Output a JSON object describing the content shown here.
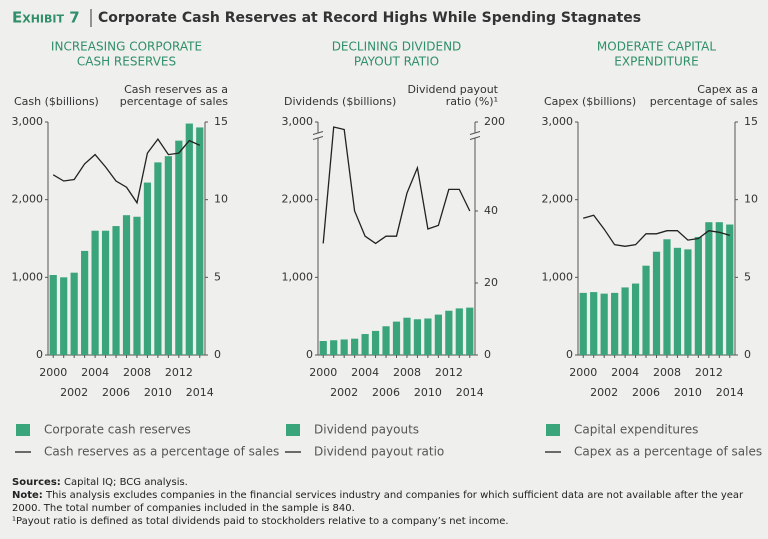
{
  "header": {
    "exhibit": "Exhibit 7",
    "title": "Corporate Cash Reserves at Record Highs While Spending Stagnates"
  },
  "chart_data": [
    {
      "type": "bar",
      "title": [
        "INCREASING CORPORATE",
        "CASH RESERVES"
      ],
      "y_label": "Cash ($billions)",
      "y2_label": [
        "Cash reserves as a",
        "percentage of sales"
      ],
      "categories": [
        "2000",
        null,
        "2002",
        null,
        "2004",
        null,
        "2006",
        null,
        "2008",
        null,
        "2010",
        null,
        "2012",
        null,
        "2014"
      ],
      "ylim": [
        0,
        3000
      ],
      "yticks": [
        0,
        {
          "value": 1000,
          "label": "1,000"
        },
        {
          "value": 2000,
          "label": "2,000"
        },
        {
          "value": 3000,
          "label": "3,000"
        }
      ],
      "y2lim": [
        0,
        15
      ],
      "y2ticks": [
        0,
        5,
        10,
        15
      ],
      "series": [
        {
          "name": "Corporate cash reserves",
          "type": "bar",
          "color": "#3aa57b",
          "axis": "y",
          "values": [
            1030,
            1000,
            1060,
            1340,
            1600,
            1600,
            1660,
            1800,
            1780,
            2220,
            2480,
            2560,
            2760,
            2980,
            2930
          ]
        },
        {
          "name": "Cash reserves as a percentage of sales",
          "type": "line",
          "color": "#222222",
          "axis": "y2",
          "values": [
            11.6,
            11.2,
            11.3,
            12.3,
            12.9,
            12.1,
            11.2,
            10.8,
            9.8,
            13.0,
            13.9,
            12.9,
            13.0,
            13.8,
            13.5
          ]
        }
      ]
    },
    {
      "type": "bar",
      "title": [
        "DECLINING DIVIDEND",
        "PAYOUT RATIO"
      ],
      "y_label": "Dividends ($billions)",
      "y2_label": [
        "Dividend payout",
        "ratio (%)¹"
      ],
      "categories": [
        "2000",
        null,
        "2002",
        null,
        "2004",
        null,
        "2006",
        null,
        "2008",
        null,
        "2010",
        null,
        "2012",
        null,
        "2014"
      ],
      "ylim": [
        0,
        3000
      ],
      "yticks": [
        0,
        {
          "value": 1000,
          "label": "1,000"
        },
        {
          "value": 2000,
          "label": "2,000"
        },
        {
          "value": 3000,
          "label": "3,000"
        }
      ],
      "y2lim": [
        0,
        200
      ],
      "y2ticks": [
        0,
        20,
        40,
        200
      ],
      "y2break": [
        60,
        180
      ],
      "series": [
        {
          "name": "Dividend payouts",
          "type": "bar",
          "color": "#3aa57b",
          "axis": "y",
          "values": [
            180,
            190,
            200,
            210,
            270,
            310,
            370,
            430,
            480,
            460,
            470,
            520,
            570,
            600,
            610
          ]
        },
        {
          "name": "Dividend payout ratio",
          "type": "line",
          "color": "#222222",
          "axis": "y2",
          "values": [
            31,
            190,
            185,
            40,
            33,
            31,
            33,
            33,
            45,
            52,
            35,
            36,
            46,
            46,
            40
          ]
        }
      ]
    },
    {
      "type": "bar",
      "title": [
        "MODERATE CAPITAL",
        "EXPENDITURE"
      ],
      "y_label": "Capex ($billions)",
      "y2_label": [
        "Capex as a",
        "percentage of sales"
      ],
      "categories": [
        "2000",
        null,
        "2002",
        null,
        "2004",
        null,
        "2006",
        null,
        "2008",
        null,
        "2010",
        null,
        "2012",
        null,
        "2014"
      ],
      "ylim": [
        0,
        3000
      ],
      "yticks": [
        0,
        {
          "value": 1000,
          "label": "1,000"
        },
        {
          "value": 2000,
          "label": "2,000"
        },
        {
          "value": 3000,
          "label": "3,000"
        }
      ],
      "y2lim": [
        0,
        15
      ],
      "y2ticks": [
        0,
        5,
        10,
        15
      ],
      "series": [
        {
          "name": "Capital expenditures",
          "type": "bar",
          "color": "#3aa57b",
          "axis": "y",
          "values": [
            800,
            810,
            790,
            800,
            870,
            920,
            1150,
            1330,
            1490,
            1380,
            1360,
            1520,
            1710,
            1710,
            1680
          ]
        },
        {
          "name": "Capex as a percentage of sales",
          "type": "line",
          "color": "#222222",
          "axis": "y2",
          "values": [
            8.8,
            9.0,
            8.1,
            7.1,
            7.0,
            7.1,
            7.8,
            7.8,
            8.0,
            8.0,
            7.4,
            7.5,
            8.0,
            7.9,
            7.7
          ]
        }
      ]
    }
  ],
  "footer": {
    "sources_label": "Sources:",
    "sources": "Capital IQ; BCG analysis.",
    "note_label": "Note:",
    "note": "This analysis excludes companies in the financial services industry and companies for which sufficient data are not available after the year 2000. The total number of companies included in the sample is 840.",
    "footnote": "¹Payout ratio is defined as total dividends paid to stockholders relative to a company’s net income."
  }
}
